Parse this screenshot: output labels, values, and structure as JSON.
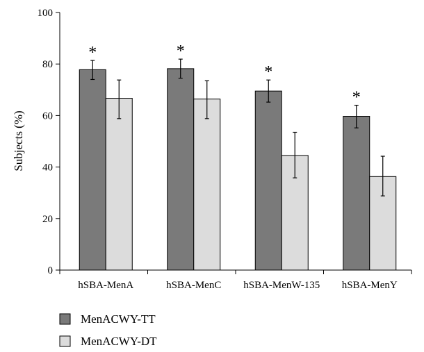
{
  "chart_data": {
    "type": "bar",
    "title": "",
    "xlabel": "",
    "ylabel": "Subjects (%)",
    "ylim": [
      0,
      100
    ],
    "yticks": [
      0,
      20,
      40,
      60,
      80,
      100
    ],
    "categories": [
      "hSBA-MenA",
      "hSBA-MenC",
      "hSBA-MenW-135",
      "hSBA-MenY"
    ],
    "series": [
      {
        "name": "MenACWY-TT",
        "color": "#7a7a7a",
        "values": [
          77.8,
          78.2,
          69.5,
          59.7
        ],
        "error_low": [
          74.0,
          74.5,
          65.2,
          55.2
        ],
        "error_high": [
          81.4,
          81.9,
          73.8,
          64.0
        ],
        "annotations": [
          "*",
          "*",
          "*",
          "*"
        ]
      },
      {
        "name": "MenACWY-DT",
        "color": "#dcdcdc",
        "values": [
          66.7,
          66.4,
          44.5,
          36.3
        ],
        "error_low": [
          58.8,
          58.8,
          35.8,
          28.8
        ],
        "error_high": [
          73.8,
          73.5,
          53.5,
          44.2
        ],
        "annotations": [
          "",
          "",
          "",
          ""
        ]
      }
    ],
    "grid": false,
    "legend": {
      "position": "bottom-left"
    }
  }
}
